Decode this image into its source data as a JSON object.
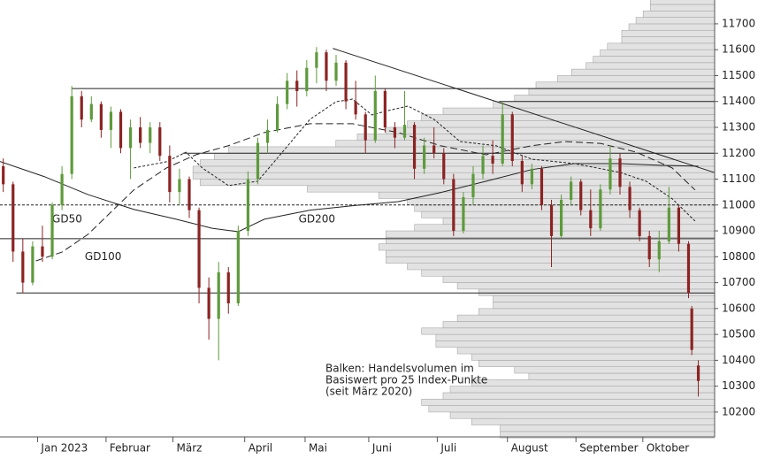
{
  "chart_data": {
    "type": "candlestick",
    "x": [
      0,
      3,
      6,
      9,
      12,
      15,
      18,
      21,
      24,
      27,
      30,
      33,
      36,
      39,
      42,
      45,
      48,
      51,
      54,
      57,
      60,
      63,
      66,
      69,
      72,
      75,
      78,
      81,
      84,
      87,
      90,
      93,
      96,
      99,
      102,
      105,
      108,
      111,
      114,
      117,
      120,
      123,
      126,
      129,
      132,
      135,
      138,
      141,
      144,
      147,
      150,
      153,
      156,
      159,
      162,
      165,
      168,
      171,
      174,
      177,
      180,
      183,
      186,
      189,
      192,
      195,
      198,
      201,
      204,
      207,
      210,
      211,
      213
    ],
    "open": [
      11150,
      11080,
      10820,
      10700,
      10840,
      10800,
      11000,
      11120,
      11420,
      11330,
      11390,
      11290,
      11360,
      11220,
      11300,
      11240,
      11300,
      11190,
      11050,
      11100,
      10980,
      10680,
      10560,
      10740,
      10620,
      10900,
      11100,
      11240,
      11290,
      11390,
      11480,
      11440,
      11530,
      11590,
      11480,
      11550,
      11400,
      11350,
      11250,
      11440,
      11300,
      11260,
      11310,
      11140,
      11230,
      11200,
      11100,
      10900,
      11030,
      11120,
      11190,
      11160,
      11350,
      11170,
      11080,
      11140,
      11000,
      10880,
      11020,
      11090,
      10980,
      10910,
      11060,
      11180,
      11070,
      10980,
      10880,
      10790,
      10860,
      10990,
      10850,
      10600,
      10380
    ],
    "high": [
      11180,
      11090,
      10870,
      10860,
      10920,
      11010,
      11150,
      11460,
      11440,
      11420,
      11400,
      11380,
      11370,
      11330,
      11340,
      11320,
      11320,
      11230,
      11140,
      11110,
      10990,
      10720,
      10780,
      10760,
      10920,
      11130,
      11260,
      11330,
      11420,
      11510,
      11520,
      11560,
      11610,
      11600,
      11580,
      11560,
      11480,
      11360,
      11500,
      11450,
      11320,
      11440,
      11320,
      11260,
      11300,
      11220,
      11120,
      11050,
      11150,
      11230,
      11250,
      11400,
      11360,
      11190,
      11160,
      11150,
      11020,
      11040,
      11110,
      11100,
      11060,
      11080,
      11230,
      11200,
      11090,
      10990,
      10900,
      10900,
      11070,
      11000,
      10860,
      10610,
      10400
    ],
    "low": [
      11050,
      10780,
      10660,
      10690,
      10780,
      10790,
      10980,
      11100,
      11300,
      11320,
      11260,
      11220,
      11200,
      11100,
      11220,
      11200,
      11170,
      11010,
      11000,
      10950,
      10620,
      10480,
      10400,
      10580,
      10610,
      10880,
      11080,
      11200,
      11280,
      11370,
      11380,
      11420,
      11470,
      11440,
      11460,
      11370,
      11330,
      11200,
      11240,
      11280,
      11220,
      11250,
      11100,
      11120,
      11180,
      11080,
      10880,
      10890,
      11000,
      11100,
      11120,
      11150,
      11150,
      11050,
      11060,
      10980,
      10760,
      10870,
      11000,
      10960,
      10880,
      10900,
      11040,
      11040,
      10950,
      10860,
      10760,
      10740,
      10850,
      10820,
      10640,
      10420,
      10260
    ],
    "close": [
      11080,
      10820,
      10700,
      10840,
      10800,
      11000,
      11120,
      11420,
      11330,
      11390,
      11290,
      11360,
      11220,
      11300,
      11240,
      11300,
      11190,
      11050,
      11100,
      10980,
      10680,
      10560,
      10740,
      10620,
      10900,
      11100,
      11240,
      11290,
      11390,
      11480,
      11440,
      11530,
      11590,
      11480,
      11550,
      11400,
      11350,
      11250,
      11440,
      11300,
      11260,
      11310,
      11140,
      11230,
      11200,
      11100,
      10900,
      11030,
      11120,
      11190,
      11160,
      11350,
      11170,
      11080,
      11140,
      11000,
      10880,
      11020,
      11090,
      10980,
      10910,
      11060,
      11180,
      11070,
      10980,
      10880,
      10790,
      10860,
      10990,
      10850,
      10660,
      10440,
      10320
    ],
    "up_color": "#5e9a3c",
    "down_color": "#8b2323",
    "xlim": [
      -1,
      218
    ],
    "ylim": [
      10104,
      11792
    ],
    "yticks": [
      10200,
      10300,
      10400,
      10500,
      10600,
      10700,
      10800,
      10900,
      11000,
      11100,
      11200,
      11300,
      11400,
      11500,
      11600,
      11700
    ],
    "xticks": [
      {
        "value": 10.5,
        "label": "Jan 2023"
      },
      {
        "value": 31.5,
        "label": "Februar"
      },
      {
        "value": 52,
        "label": "März"
      },
      {
        "value": 74,
        "label": "April"
      },
      {
        "value": 92.5,
        "label": "Mai"
      },
      {
        "value": 112,
        "label": "Juni"
      },
      {
        "value": 133,
        "label": "Juli"
      },
      {
        "value": 154.5,
        "label": "August"
      },
      {
        "value": 175.5,
        "label": "September"
      },
      {
        "value": 196,
        "label": "Oktober"
      }
    ],
    "volume_profile": {
      "color": "#e2e2e2",
      "volume_lim": [
        0,
        100
      ],
      "bins": [
        10100,
        10125,
        10150,
        10175,
        10200,
        10225,
        10250,
        10275,
        10300,
        10325,
        10350,
        10375,
        10400,
        10425,
        10450,
        10475,
        10500,
        10525,
        10550,
        10575,
        10600,
        10625,
        10650,
        10675,
        10700,
        10725,
        10750,
        10775,
        10800,
        10825,
        10850,
        10875,
        10900,
        10925,
        10950,
        10975,
        11000,
        11025,
        11050,
        11075,
        11100,
        11125,
        11150,
        11175,
        11200,
        11225,
        11250,
        11275,
        11300,
        11325,
        11350,
        11375,
        11400,
        11425,
        11450,
        11475,
        11500,
        11525,
        11550,
        11575,
        11600,
        11625,
        11650,
        11675,
        11700,
        11725,
        11750,
        11775,
        11800
      ],
      "values": [
        30,
        30,
        34,
        37,
        40,
        41,
        38,
        37,
        34,
        26,
        28,
        33,
        34,
        36,
        39,
        39,
        41,
        38,
        36,
        33,
        31,
        31,
        33,
        36,
        38,
        41,
        43,
        46,
        46,
        47,
        46,
        46,
        42,
        38,
        41,
        42,
        43,
        47,
        57,
        72,
        73,
        73,
        72,
        70,
        68,
        53,
        50,
        46,
        43,
        41,
        38,
        31,
        28,
        26,
        25,
        22,
        20,
        18,
        17,
        16,
        15,
        13,
        13,
        12,
        11,
        10,
        9,
        9
      ]
    },
    "levels": [
      {
        "value": 11450,
        "from": 21
      },
      {
        "value": 11400,
        "from": 152
      },
      {
        "value": 11200,
        "from": 55
      },
      {
        "value": 10870,
        "from": -1
      },
      {
        "value": 10660,
        "from": 4
      },
      {
        "value": 11000,
        "from": -1,
        "dashed": true
      }
    ],
    "trendline": {
      "x": [
        101,
        218
      ],
      "y": [
        11605,
        11125
      ]
    },
    "moving_averages": [
      {
        "name": "GD50",
        "dash": "3,2",
        "x": [
          40,
          50,
          56,
          61,
          69,
          78,
          86,
          94,
          102,
          107,
          113,
          118,
          124,
          132,
          140,
          151,
          162,
          175,
          189,
          197,
          205,
          212
        ],
        "values": [
          11143,
          11167,
          11204,
          11143,
          11075,
          11092,
          11211,
          11331,
          11399,
          11409,
          11348,
          11365,
          11382,
          11331,
          11245,
          11229,
          11177,
          11160,
          11126,
          11092,
          11024,
          10938
        ],
        "label_at": [
          15,
          10945
        ]
      },
      {
        "name": "GD100",
        "dash": "8,4",
        "x": [
          10,
          18,
          26,
          40,
          50,
          59,
          69,
          80,
          94,
          107,
          121,
          134,
          148,
          162,
          172,
          183,
          194,
          205,
          212
        ],
        "values": [
          10784,
          10818,
          10887,
          11058,
          11143,
          11194,
          11229,
          11280,
          11314,
          11314,
          11280,
          11229,
          11194,
          11229,
          11245,
          11238,
          11204,
          11143,
          11058
        ],
        "label_at": [
          25,
          10800
        ]
      },
      {
        "name": "GD200",
        "dash": "none",
        "x": [
          -1,
          12.5,
          26,
          40,
          53,
          64,
          72,
          80,
          94,
          107,
          121,
          134,
          148,
          162,
          175,
          189,
          202,
          213
        ],
        "values": [
          11168,
          11110,
          11040,
          10983,
          10945,
          10910,
          10897,
          10945,
          10980,
          10997,
          11013,
          11048,
          11092,
          11137,
          11160,
          11160,
          11153,
          11150
        ],
        "label_at": [
          90.5,
          10945
        ]
      }
    ],
    "annotation": [
      "Balken: Handelsvolumen im",
      "Basiswert pro 25 Index-Punkte",
      "(seit März 2020)"
    ]
  }
}
